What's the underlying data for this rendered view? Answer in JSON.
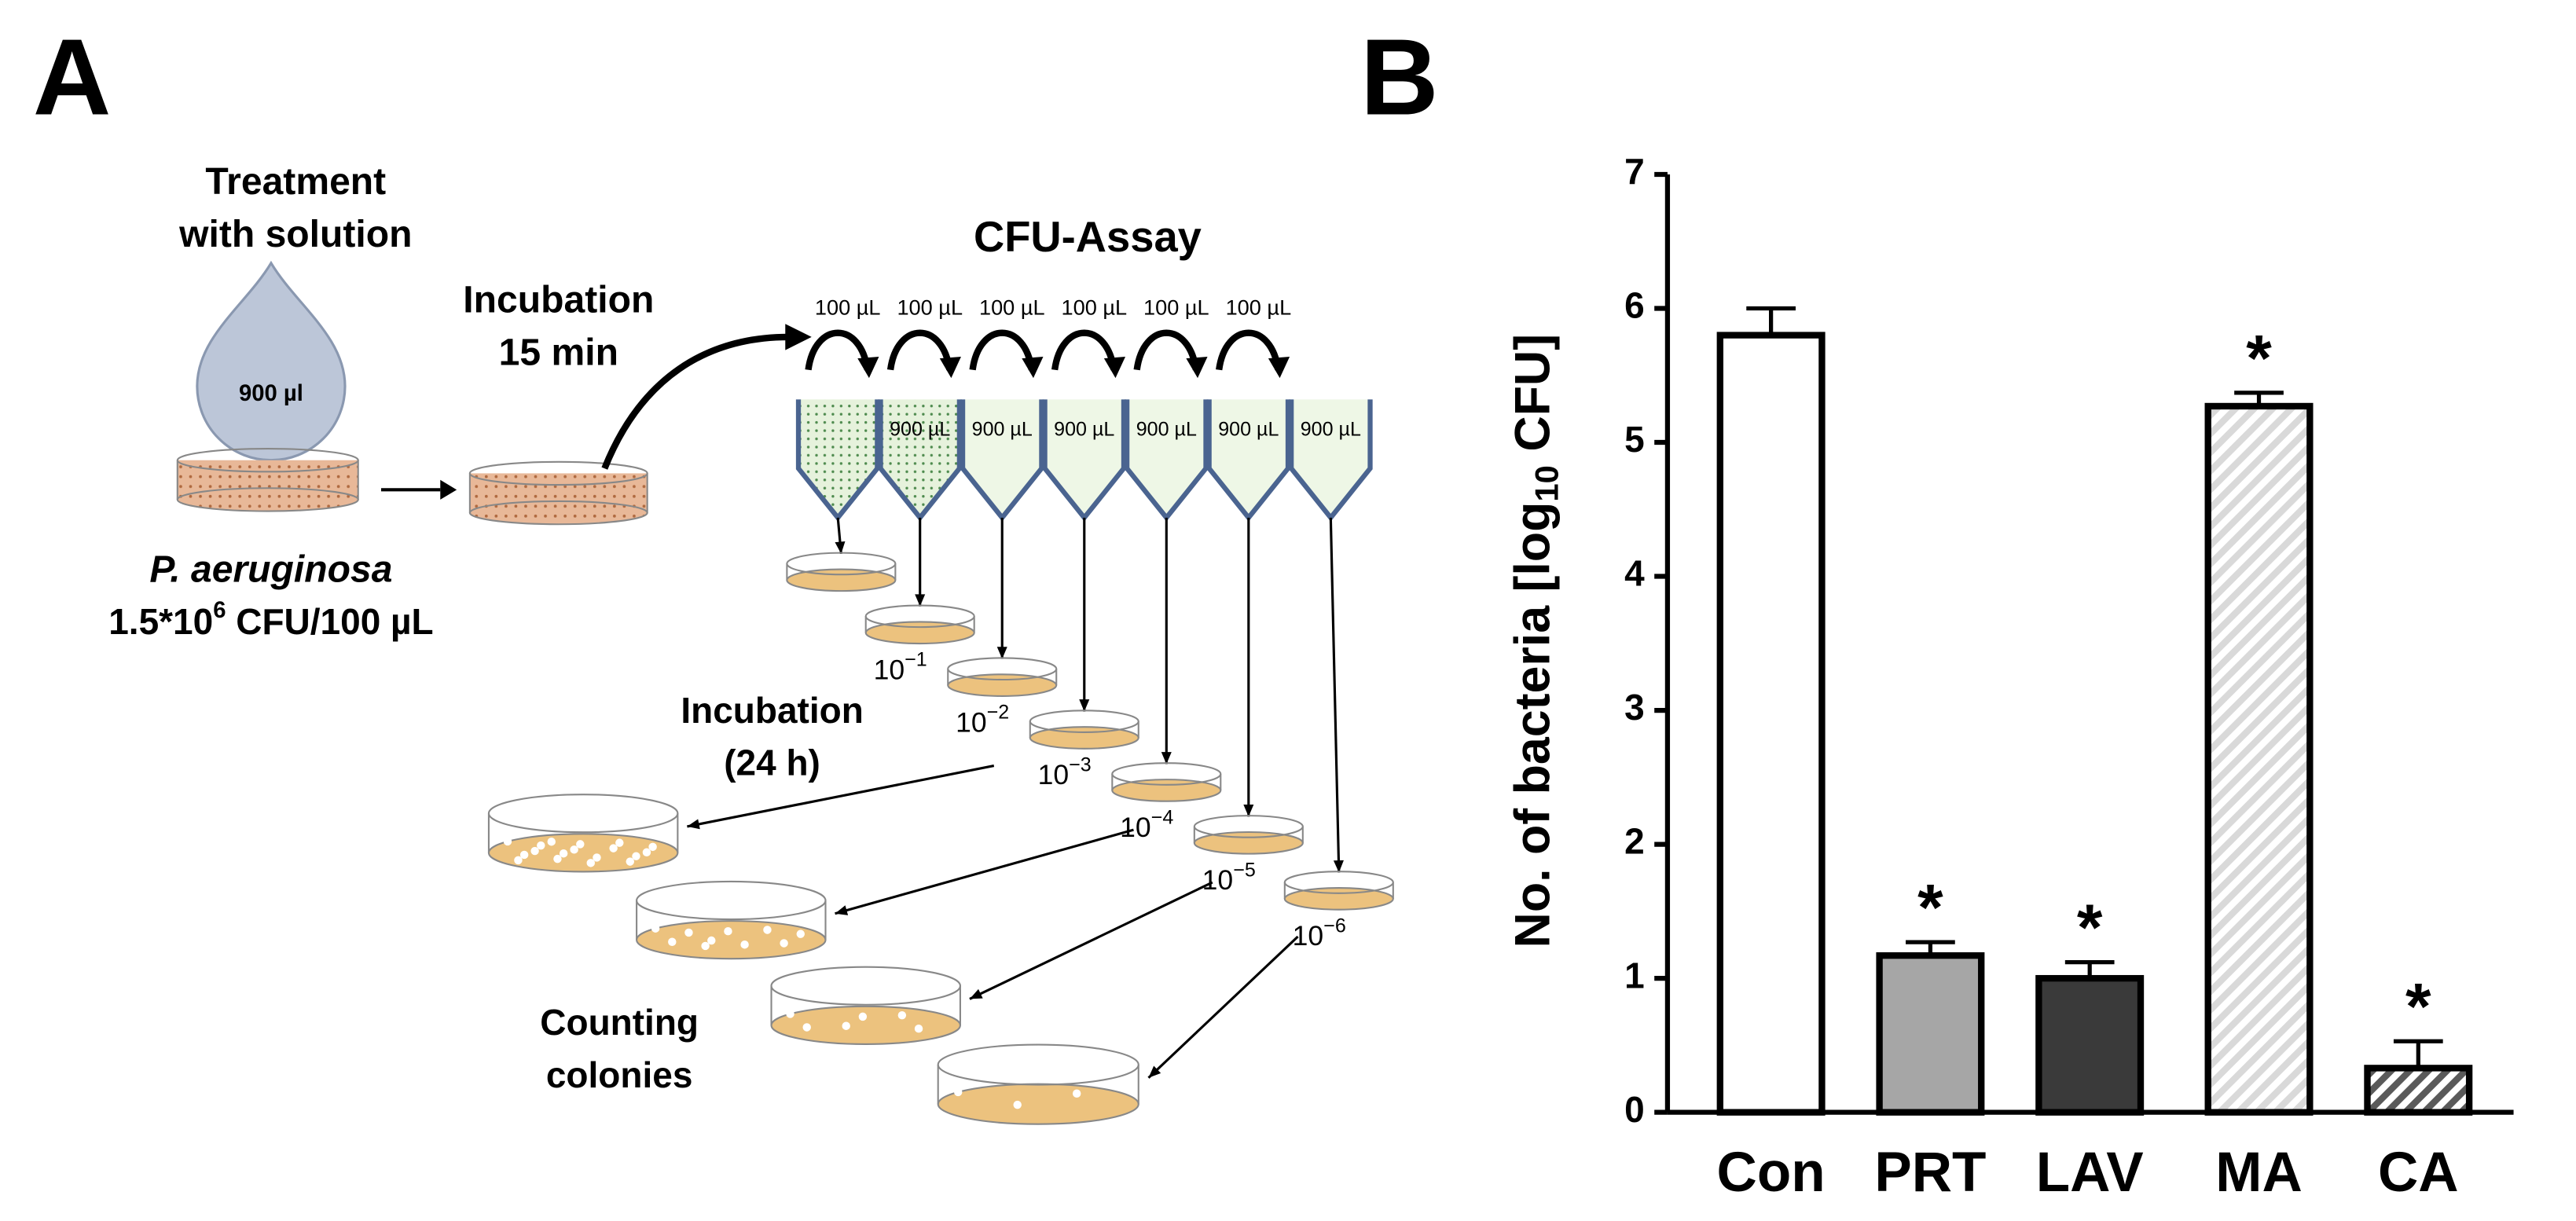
{
  "panel_labels": [
    "A",
    "B"
  ],
  "diagram": {
    "treatment": [
      "Treatment",
      "with solution"
    ],
    "drop_volume": "900 µl",
    "organism": "P. aeruginosa",
    "inoculum": [
      "1.5*10",
      "6",
      " CFU/100 µL"
    ],
    "incubation_1": [
      "Incubation",
      "15 min"
    ],
    "assay_title": "CFU-Assay",
    "transfer_volumes": [
      "100 µL",
      "100 µL",
      "100 µL",
      "100 µL",
      "100 µL",
      "100 µL"
    ],
    "well_volumes": [
      "900 µL",
      "900 µL",
      "900 µL",
      "900 µL",
      "900 µL",
      "900 µL"
    ],
    "dilutions": [
      {
        "base": "10",
        "exponent": "−1"
      },
      {
        "base": "10",
        "exponent": "−2"
      },
      {
        "base": "10",
        "exponent": "−3"
      },
      {
        "base": "10",
        "exponent": "−4"
      },
      {
        "base": "10",
        "exponent": "−5"
      },
      {
        "base": "10",
        "exponent": "−6"
      }
    ],
    "incubation_2": [
      "Incubation",
      "(24 h)"
    ],
    "counting": [
      "Counting",
      "colonies"
    ]
  },
  "chart_data": {
    "type": "bar",
    "ylabel": [
      "No. of bacteria [log",
      "10",
      " CFU]"
    ],
    "categories": [
      "Con",
      "PRT",
      "LAV",
      "MA",
      "CA"
    ],
    "values": [
      5.8,
      1.17,
      1.0,
      5.27,
      0.33
    ],
    "errors": [
      0.2,
      0.1,
      0.12,
      0.1,
      0.2
    ],
    "significance": [
      null,
      "*",
      "*",
      "*",
      "*"
    ],
    "colors": [
      "#ffffff",
      "#a6a6a6",
      "#3a3a3a",
      "#d9d9d9",
      "#5a5a5a"
    ],
    "hatch": [
      false,
      false,
      false,
      true,
      true
    ],
    "ylim": [
      0,
      7
    ],
    "yticks": [
      0,
      1,
      2,
      3,
      4,
      5,
      6,
      7
    ]
  }
}
